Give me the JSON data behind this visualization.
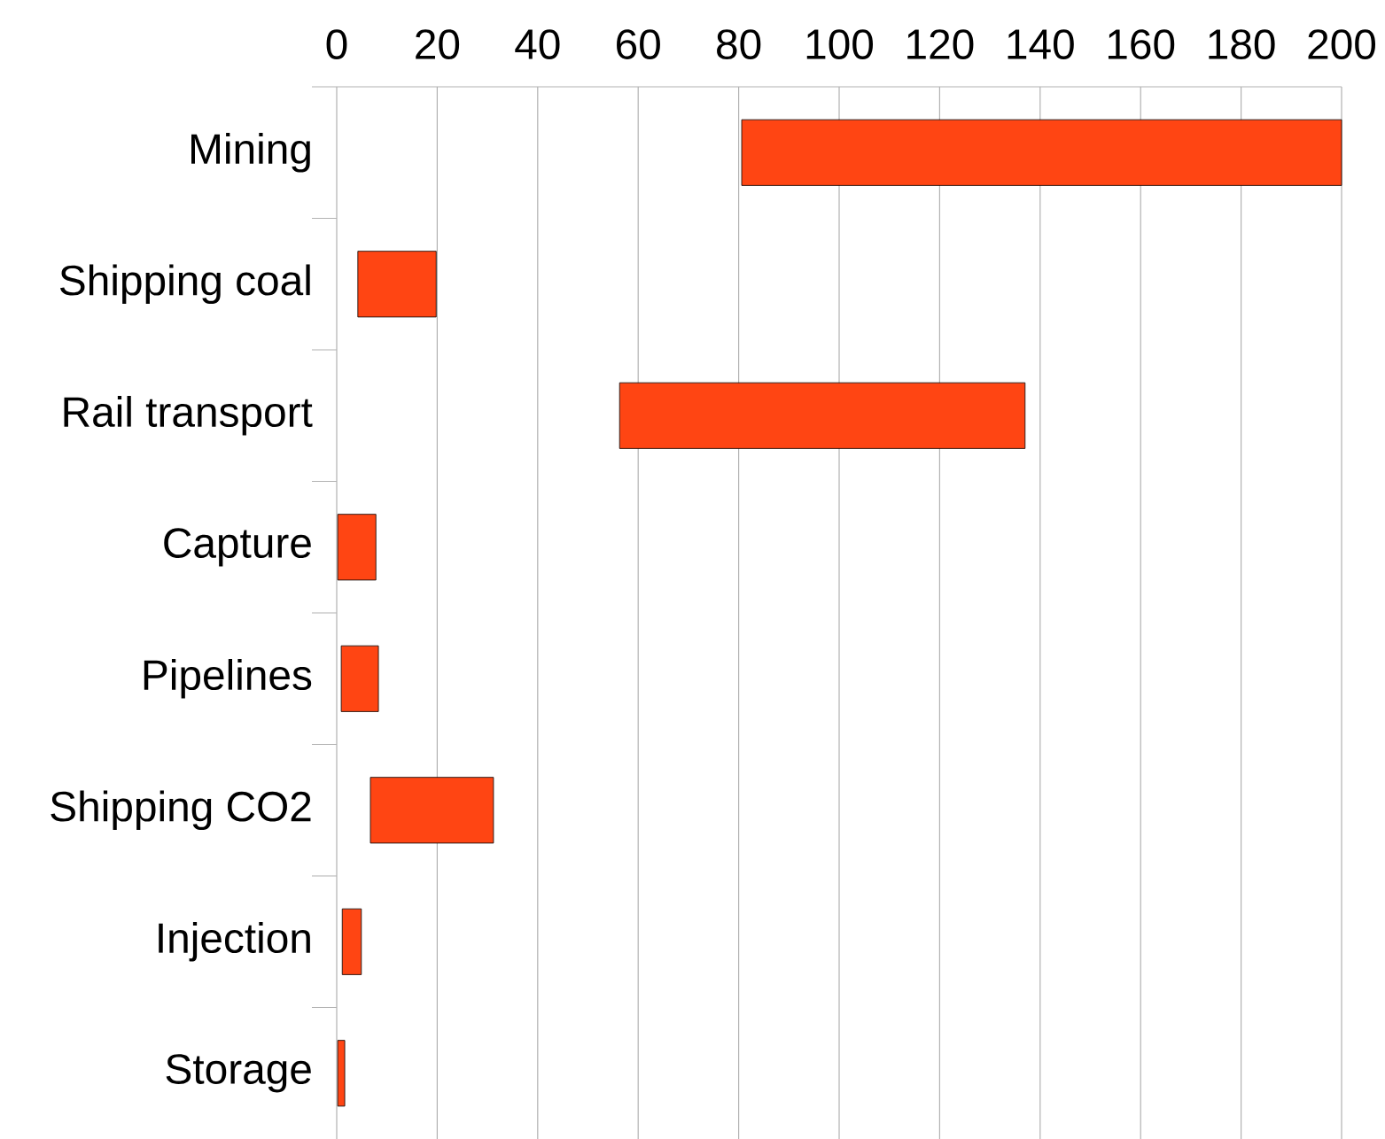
{
  "chart_data": {
    "type": "bar",
    "orientation": "horizontal",
    "categories": [
      "Mining",
      "Shipping coal",
      "Rail transport",
      "Capture",
      "Pipelines",
      "Shipping CO2",
      "Injection",
      "Storage"
    ],
    "base": [
      80.6,
      4.2,
      56.3,
      0.2,
      0.9,
      6.7,
      1.1,
      0.2
    ],
    "values": [
      119.4,
      15.6,
      80.7,
      7.6,
      7.4,
      24.5,
      3.8,
      1.4
    ],
    "color": "#ff4513",
    "xlim": [
      0,
      200
    ],
    "xticks": [
      0,
      20,
      40,
      60,
      80,
      100,
      120,
      140,
      160,
      180,
      200
    ],
    "grid": "x"
  }
}
